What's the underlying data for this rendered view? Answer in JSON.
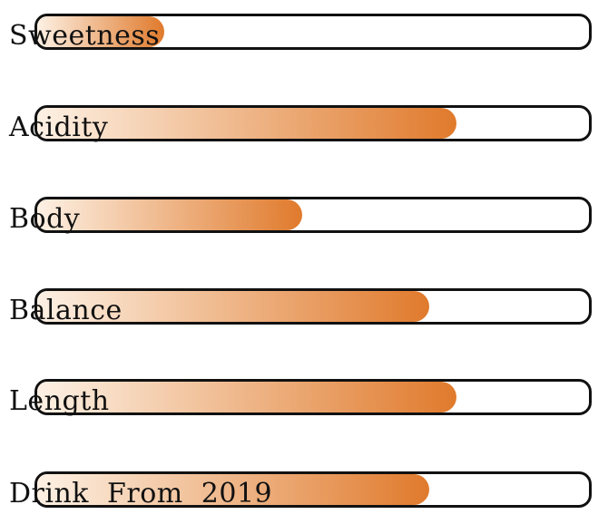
{
  "colors": {
    "fill_start": "#fdf1e4",
    "fill_end": "#e07a2c",
    "border": "#111111",
    "text": "#111111"
  },
  "bars": [
    {
      "label": "Sweetness",
      "level": 0.23
    },
    {
      "label": "Acidity",
      "level": 0.76
    },
    {
      "label": "Body",
      "level": 0.48
    },
    {
      "label": "Balance",
      "level": 0.71
    },
    {
      "label": "Length",
      "level": 0.76
    },
    {
      "label": "Drink  From  2019",
      "level": 0.71
    }
  ]
}
